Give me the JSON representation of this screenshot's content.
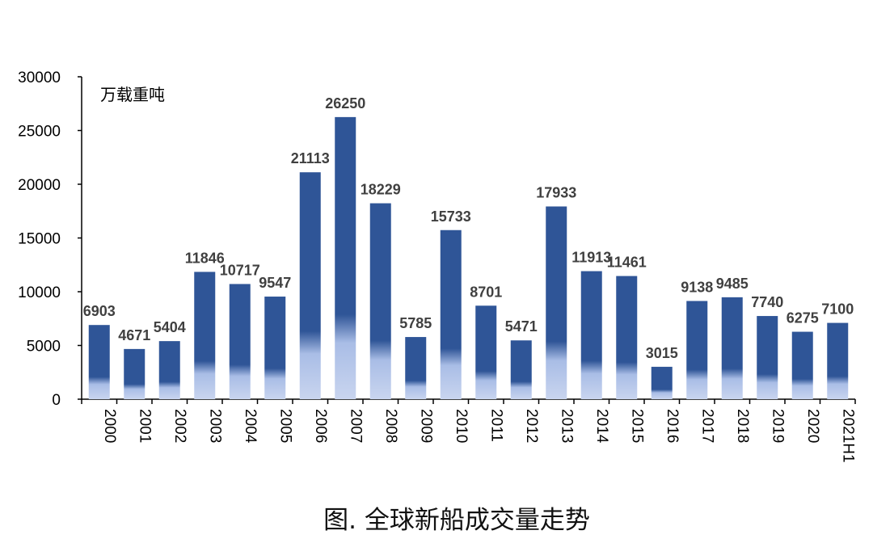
{
  "chart_data": {
    "type": "bar",
    "ylabel": "万载重吨",
    "ylim": [
      0,
      30000
    ],
    "yticks": [
      0,
      5000,
      10000,
      15000,
      20000,
      25000,
      30000
    ],
    "grid": false,
    "categories": [
      "2000",
      "2001",
      "2002",
      "2003",
      "2004",
      "2005",
      "2006",
      "2007",
      "2008",
      "2009",
      "2010",
      "2011",
      "2012",
      "2013",
      "2014",
      "2015",
      "2016",
      "2017",
      "2018",
      "2019",
      "2020",
      "2021H1"
    ],
    "values": [
      6903,
      4671,
      5404,
      11846,
      10717,
      9547,
      21113,
      26250,
      18229,
      5785,
      15733,
      8701,
      5471,
      17933,
      11913,
      11461,
      3015,
      9138,
      9485,
      7740,
      6275,
      7100
    ],
    "colors": {
      "bar_top": "#2f5597",
      "bar_bottom": "#c9d5ef",
      "label": "#404040"
    }
  },
  "caption": "图.  全球新船成交量走势"
}
